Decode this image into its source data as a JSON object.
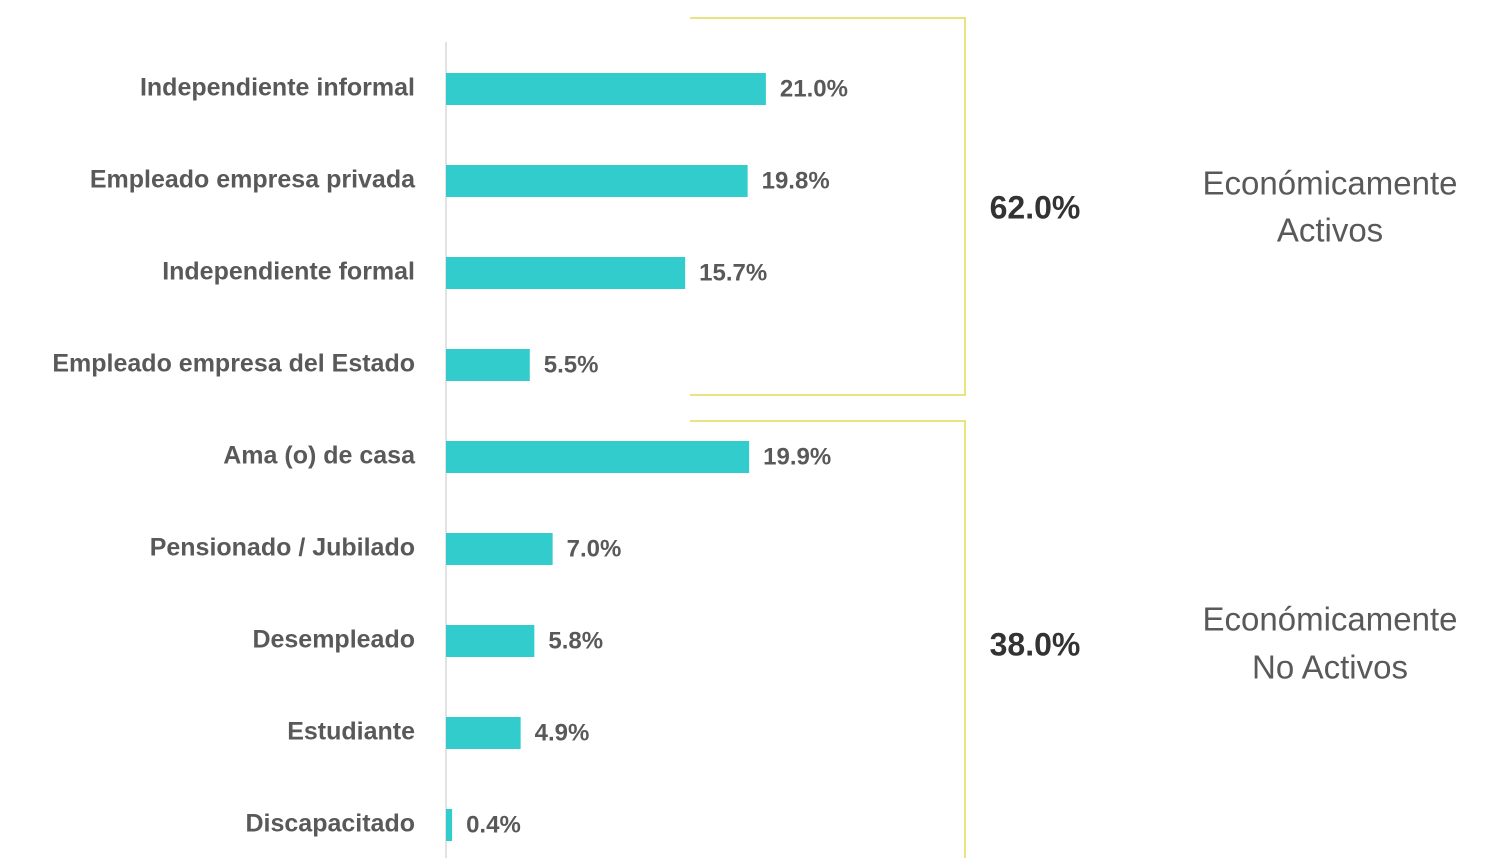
{
  "chart_data": {
    "type": "barh",
    "categories": [
      "Independiente informal",
      "Empleado empresa privada",
      "Independiente formal",
      "Empleado empresa del Estado",
      "Ama (o) de casa",
      "Pensionado / Jubilado",
      "Desempleado",
      "Estudiante",
      "Discapacitado"
    ],
    "values": [
      21.0,
      19.8,
      15.7,
      5.5,
      19.9,
      7.0,
      5.8,
      4.9,
      0.4
    ],
    "value_labels": [
      "21.0%",
      "19.8%",
      "15.7%",
      "5.5%",
      "19.9%",
      "7.0%",
      "5.8%",
      "4.9%",
      "0.4%"
    ],
    "color": "#33cccc",
    "xlim": [
      0,
      30
    ],
    "groups": [
      {
        "total": "62.0%",
        "label": [
          "Económicamente",
          "Activos"
        ]
      },
      {
        "total": "38.0%",
        "label": [
          "Económicamente",
          "No Activos"
        ]
      }
    ]
  }
}
